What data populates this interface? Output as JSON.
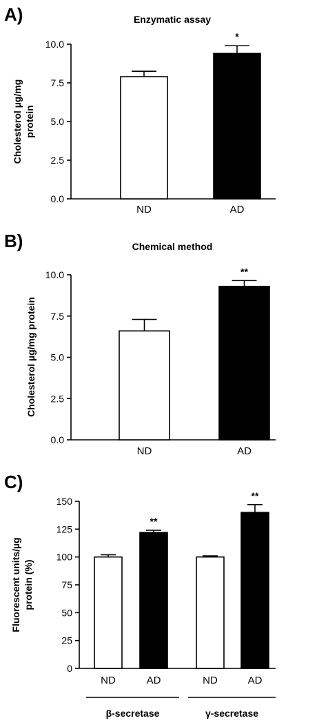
{
  "chart_data": [
    {
      "panel": "A)",
      "type": "bar",
      "title": "Enzymatic assay",
      "ylabel": [
        "Cholesterol µg/mg",
        "protein"
      ],
      "ylim": [
        0,
        10
      ],
      "yticks": [
        "0.0",
        "2.5",
        "5.0",
        "7.5",
        "10.0"
      ],
      "categories": [
        "ND",
        "AD"
      ],
      "values": [
        7.9,
        9.4
      ],
      "errors": [
        0.35,
        0.5
      ],
      "fills": [
        "#ffffff",
        "#000000"
      ],
      "annotations": [
        "",
        "*"
      ]
    },
    {
      "panel": "B)",
      "type": "bar",
      "title": "Chemical method",
      "ylabel": [
        "Cholesterol µg/mg protein"
      ],
      "ylim": [
        0,
        10
      ],
      "yticks": [
        "0.0",
        "2.5",
        "5.0",
        "7.5",
        "10.0"
      ],
      "categories": [
        "ND",
        "AD"
      ],
      "values": [
        6.6,
        9.3
      ],
      "errors": [
        0.7,
        0.35
      ],
      "fills": [
        "#ffffff",
        "#000000"
      ],
      "annotations": [
        "",
        "**"
      ]
    },
    {
      "panel": "C)",
      "type": "bar",
      "title": "",
      "ylabel": [
        "Fluorescent units/µg",
        "protein (%)"
      ],
      "ylim": [
        0,
        150
      ],
      "yticks": [
        "0",
        "25",
        "50",
        "75",
        "100",
        "125",
        "150"
      ],
      "categories": [
        "ND",
        "AD",
        "ND",
        "AD"
      ],
      "values": [
        100,
        122,
        100,
        140
      ],
      "errors": [
        2,
        2,
        1,
        7
      ],
      "fills": [
        "#ffffff",
        "#000000",
        "#ffffff",
        "#000000"
      ],
      "annotations": [
        "",
        "**",
        "",
        "**"
      ],
      "groups": [
        "β-secretase",
        "γ-secretase"
      ]
    }
  ]
}
